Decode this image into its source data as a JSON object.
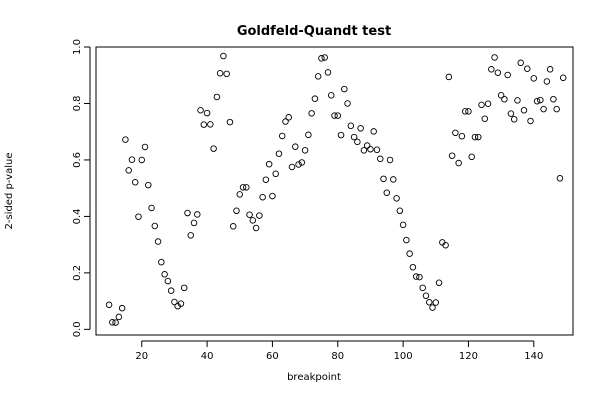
{
  "chart_data": {
    "type": "scatter",
    "title": "Goldfeld-Quandt test",
    "xlabel": "breakpoint",
    "ylabel": "2-sided p-value",
    "xlim": [
      6,
      152
    ],
    "ylim": [
      -0.02,
      1.0
    ],
    "x_ticks": [
      20,
      40,
      60,
      80,
      100,
      120,
      140
    ],
    "x_tick_labels": [
      "20",
      "40",
      "60",
      "80",
      "100",
      "120",
      "140"
    ],
    "y_ticks": [
      0.0,
      0.2,
      0.4,
      0.6,
      0.8,
      1.0
    ],
    "y_tick_labels": [
      "0.0",
      "0.2",
      "0.4",
      "0.6",
      "0.8",
      "1.0"
    ],
    "grid": false,
    "marker": "open-circle",
    "marker_color": "#000000",
    "points": [
      [
        10,
        0.087
      ],
      [
        11,
        0.025
      ],
      [
        12,
        0.024
      ],
      [
        13,
        0.044
      ],
      [
        14,
        0.075
      ],
      [
        15,
        0.672
      ],
      [
        16,
        0.563
      ],
      [
        17,
        0.601
      ],
      [
        18,
        0.521
      ],
      [
        19,
        0.399
      ],
      [
        20,
        0.6
      ],
      [
        21,
        0.646
      ],
      [
        22,
        0.511
      ],
      [
        23,
        0.43
      ],
      [
        24,
        0.366
      ],
      [
        25,
        0.311
      ],
      [
        26,
        0.238
      ],
      [
        27,
        0.195
      ],
      [
        28,
        0.171
      ],
      [
        29,
        0.137
      ],
      [
        30,
        0.097
      ],
      [
        31,
        0.082
      ],
      [
        32,
        0.091
      ],
      [
        33,
        0.147
      ],
      [
        34,
        0.412
      ],
      [
        35,
        0.333
      ],
      [
        36,
        0.377
      ],
      [
        37,
        0.407
      ],
      [
        38,
        0.776
      ],
      [
        39,
        0.725
      ],
      [
        40,
        0.766
      ],
      [
        41,
        0.726
      ],
      [
        42,
        0.64
      ],
      [
        43,
        0.823
      ],
      [
        44,
        0.907
      ],
      [
        45,
        0.968
      ],
      [
        46,
        0.905
      ],
      [
        47,
        0.734
      ],
      [
        48,
        0.365
      ],
      [
        49,
        0.42
      ],
      [
        50,
        0.478
      ],
      [
        51,
        0.503
      ],
      [
        52,
        0.503
      ],
      [
        53,
        0.406
      ],
      [
        54,
        0.386
      ],
      [
        55,
        0.359
      ],
      [
        56,
        0.403
      ],
      [
        57,
        0.468
      ],
      [
        58,
        0.53
      ],
      [
        59,
        0.585
      ],
      [
        60,
        0.472
      ],
      [
        61,
        0.551
      ],
      [
        62,
        0.622
      ],
      [
        63,
        0.685
      ],
      [
        64,
        0.736
      ],
      [
        65,
        0.751
      ],
      [
        66,
        0.575
      ],
      [
        67,
        0.647
      ],
      [
        68,
        0.584
      ],
      [
        69,
        0.591
      ],
      [
        70,
        0.634
      ],
      [
        71,
        0.689
      ],
      [
        72,
        0.765
      ],
      [
        73,
        0.817
      ],
      [
        74,
        0.896
      ],
      [
        75,
        0.96
      ],
      [
        76,
        0.963
      ],
      [
        77,
        0.91
      ],
      [
        78,
        0.829
      ],
      [
        79,
        0.757
      ],
      [
        80,
        0.757
      ],
      [
        81,
        0.688
      ],
      [
        82,
        0.851
      ],
      [
        83,
        0.8
      ],
      [
        84,
        0.721
      ],
      [
        85,
        0.681
      ],
      [
        86,
        0.664
      ],
      [
        87,
        0.712
      ],
      [
        88,
        0.634
      ],
      [
        89,
        0.651
      ],
      [
        90,
        0.638
      ],
      [
        91,
        0.701
      ],
      [
        92,
        0.636
      ],
      [
        93,
        0.604
      ],
      [
        94,
        0.533
      ],
      [
        95,
        0.484
      ],
      [
        96,
        0.6
      ],
      [
        97,
        0.531
      ],
      [
        98,
        0.464
      ],
      [
        99,
        0.42
      ],
      [
        100,
        0.37
      ],
      [
        101,
        0.316
      ],
      [
        102,
        0.268
      ],
      [
        103,
        0.22
      ],
      [
        104,
        0.187
      ],
      [
        105,
        0.185
      ],
      [
        106,
        0.147
      ],
      [
        107,
        0.119
      ],
      [
        108,
        0.096
      ],
      [
        109,
        0.077
      ],
      [
        110,
        0.095
      ],
      [
        111,
        0.165
      ],
      [
        112,
        0.308
      ],
      [
        113,
        0.298
      ],
      [
        114,
        0.894
      ],
      [
        115,
        0.615
      ],
      [
        116,
        0.696
      ],
      [
        117,
        0.589
      ],
      [
        118,
        0.684
      ],
      [
        119,
        0.772
      ],
      [
        120,
        0.772
      ],
      [
        121,
        0.611
      ],
      [
        122,
        0.681
      ],
      [
        123,
        0.681
      ],
      [
        124,
        0.795
      ],
      [
        125,
        0.746
      ],
      [
        126,
        0.799
      ],
      [
        127,
        0.921
      ],
      [
        128,
        0.963
      ],
      [
        129,
        0.909
      ],
      [
        130,
        0.829
      ],
      [
        131,
        0.815
      ],
      [
        132,
        0.901
      ],
      [
        133,
        0.764
      ],
      [
        134,
        0.744
      ],
      [
        135,
        0.811
      ],
      [
        136,
        0.944
      ],
      [
        137,
        0.776
      ],
      [
        138,
        0.923
      ],
      [
        139,
        0.738
      ],
      [
        140,
        0.889
      ],
      [
        141,
        0.808
      ],
      [
        142,
        0.812
      ],
      [
        143,
        0.78
      ],
      [
        144,
        0.878
      ],
      [
        145,
        0.921
      ],
      [
        146,
        0.815
      ],
      [
        147,
        0.78
      ],
      [
        148,
        0.535
      ],
      [
        149,
        0.891
      ]
    ]
  }
}
